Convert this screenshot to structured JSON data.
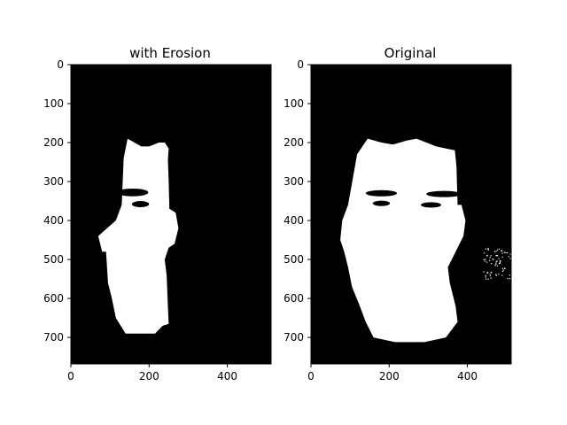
{
  "figure": {
    "background": "#ffffff",
    "axis_color": "#000000"
  },
  "chart_data": [
    {
      "type": "heatmap",
      "title": "with Erosion",
      "xlabel": "",
      "ylabel": "",
      "xlim": [
        0,
        512
      ],
      "ylim": [
        768,
        0
      ],
      "x_ticks": [
        0,
        200,
        400
      ],
      "y_ticks": [
        0,
        100,
        200,
        300,
        400,
        500,
        600,
        700
      ],
      "colormap": {
        "background": "#000000",
        "foreground": "#ffffff"
      },
      "image": {
        "description_values": "binary mask (0 = black, 1 = white)",
        "face_outline": [
          [
            115,
            400
          ],
          [
            130,
            360
          ],
          [
            135,
            240
          ],
          [
            145,
            190
          ],
          [
            180,
            210
          ],
          [
            200,
            210
          ],
          [
            225,
            200
          ],
          [
            240,
            200
          ],
          [
            250,
            215
          ],
          [
            248,
            245
          ],
          [
            250,
            300
          ],
          [
            252,
            370
          ],
          [
            268,
            380
          ],
          [
            275,
            420
          ],
          [
            265,
            460
          ],
          [
            250,
            470
          ],
          [
            240,
            500
          ],
          [
            245,
            540
          ],
          [
            248,
            620
          ],
          [
            250,
            665
          ],
          [
            235,
            670
          ],
          [
            215,
            690
          ],
          [
            140,
            690
          ],
          [
            115,
            650
          ],
          [
            105,
            600
          ],
          [
            95,
            560
          ],
          [
            90,
            480
          ],
          [
            80,
            480
          ],
          [
            70,
            440
          ]
        ],
        "eyebrows": [
          {
            "cx": 158,
            "cy": 328,
            "rx": 40,
            "ry": 10
          },
          {
            "cx": 310,
            "cy": 330,
            "rx": 45,
            "ry": 10
          }
        ],
        "eyes": [
          {
            "cx": 178,
            "cy": 358,
            "rx": 22,
            "ry": 8
          },
          {
            "cx": 307,
            "cy": 361,
            "rx": 28,
            "ry": 9
          }
        ]
      }
    },
    {
      "type": "heatmap",
      "title": "Original",
      "xlabel": "",
      "ylabel": "",
      "xlim": [
        0,
        512
      ],
      "ylim": [
        768,
        0
      ],
      "x_ticks": [
        0,
        200,
        400
      ],
      "y_ticks": [
        0,
        100,
        200,
        300,
        400,
        500,
        600,
        700
      ],
      "colormap": {
        "background": "#000000",
        "foreground": "#ffffff"
      },
      "image": {
        "description_values": "binary mask (0 = black, 1 = white)",
        "face_outline": [
          [
            80,
            400
          ],
          [
            95,
            360
          ],
          [
            118,
            230
          ],
          [
            145,
            190
          ],
          [
            180,
            200
          ],
          [
            210,
            205
          ],
          [
            245,
            195
          ],
          [
            270,
            190
          ],
          [
            320,
            210
          ],
          [
            368,
            220
          ],
          [
            372,
            260
          ],
          [
            375,
            360
          ],
          [
            385,
            360
          ],
          [
            395,
            400
          ],
          [
            390,
            440
          ],
          [
            375,
            470
          ],
          [
            365,
            490
          ],
          [
            350,
            520
          ],
          [
            355,
            560
          ],
          [
            370,
            620
          ],
          [
            375,
            660
          ],
          [
            345,
            700
          ],
          [
            290,
            712
          ],
          [
            215,
            712
          ],
          [
            160,
            700
          ],
          [
            140,
            660
          ],
          [
            125,
            620
          ],
          [
            105,
            570
          ],
          [
            95,
            520
          ],
          [
            85,
            480
          ],
          [
            75,
            450
          ]
        ],
        "eyebrows": [
          {
            "cx": 180,
            "cy": 330,
            "rx": 40,
            "ry": 8
          },
          {
            "cx": 340,
            "cy": 332,
            "rx": 45,
            "ry": 8
          }
        ],
        "eyes": [
          {
            "cx": 180,
            "cy": 356,
            "rx": 22,
            "ry": 7
          },
          {
            "cx": 307,
            "cy": 360,
            "rx": 26,
            "ry": 7
          }
        ],
        "speckle_region": {
          "x_range": [
            440,
            512
          ],
          "y_range": [
            470,
            550
          ]
        }
      }
    }
  ]
}
